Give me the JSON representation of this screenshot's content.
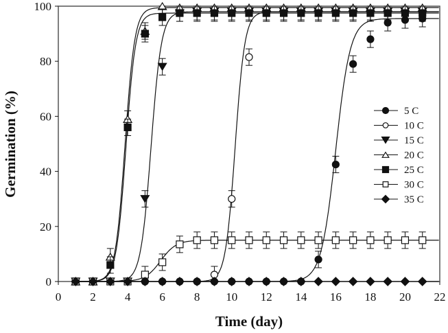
{
  "chart_data": {
    "type": "scatter",
    "title": "",
    "xlabel": "Time (day)",
    "ylabel": "Germination (%)",
    "xlim": [
      0,
      22
    ],
    "ylim": [
      0,
      100
    ],
    "xticks": [
      0,
      2,
      4,
      6,
      8,
      10,
      12,
      14,
      16,
      18,
      20,
      22
    ],
    "yticks": [
      0,
      20,
      40,
      60,
      80,
      100
    ],
    "grid": false,
    "legend_position": "right-middle",
    "x": [
      1,
      2,
      3,
      4,
      5,
      6,
      7,
      8,
      9,
      10,
      11,
      12,
      13,
      14,
      15,
      16,
      17,
      18,
      19,
      20,
      21
    ],
    "error_bar": 3,
    "series": [
      {
        "name": "5 C",
        "marker": "filled-circle",
        "values": [
          0,
          0,
          0,
          0,
          0,
          0,
          0,
          0,
          0,
          0,
          0,
          0,
          0,
          0,
          8,
          42.5,
          79,
          88,
          94,
          95,
          95.5
        ]
      },
      {
        "name": "10 C",
        "marker": "open-circle",
        "values": [
          0,
          0,
          0,
          0,
          0,
          0,
          0,
          0,
          2.5,
          30,
          81.5,
          97.5,
          98,
          98,
          98,
          98,
          98,
          98,
          98,
          98,
          98
        ]
      },
      {
        "name": "15 C",
        "marker": "filled-triangle-down",
        "values": [
          0,
          0,
          0,
          0,
          30,
          78,
          97.5,
          98,
          98,
          98,
          98,
          98,
          98,
          98,
          98,
          98,
          98,
          98,
          98,
          98,
          98
        ]
      },
      {
        "name": "20 C",
        "marker": "open-triangle-up",
        "values": [
          0,
          0,
          9,
          59,
          91,
          100,
          99.5,
          99.5,
          99.5,
          99.5,
          99.5,
          99.5,
          99.5,
          99.5,
          99.5,
          99.5,
          99.5,
          99.5,
          99.5,
          99.5,
          99.5
        ]
      },
      {
        "name": "25 C",
        "marker": "filled-square",
        "values": [
          0,
          0,
          6,
          56,
          90,
          96,
          97.5,
          97.5,
          97.5,
          97.5,
          97.5,
          97.5,
          97.5,
          97.5,
          97.5,
          97.5,
          97.5,
          97.5,
          97.5,
          97.5,
          97.5
        ]
      },
      {
        "name": "30 C",
        "marker": "open-square",
        "values": [
          0,
          0,
          0,
          0,
          2.5,
          7,
          13.5,
          15,
          15,
          15,
          15,
          15,
          15,
          15,
          15,
          15,
          15,
          15,
          15,
          15,
          15
        ]
      },
      {
        "name": "35 C",
        "marker": "filled-diamond",
        "values": [
          0,
          0,
          0,
          0,
          0,
          0,
          0,
          0,
          0,
          0,
          0,
          0,
          0,
          0,
          0,
          0,
          0,
          0,
          0,
          0,
          0
        ]
      }
    ],
    "colors": {
      "ink": "#111111",
      "background": "#ffffff"
    }
  }
}
